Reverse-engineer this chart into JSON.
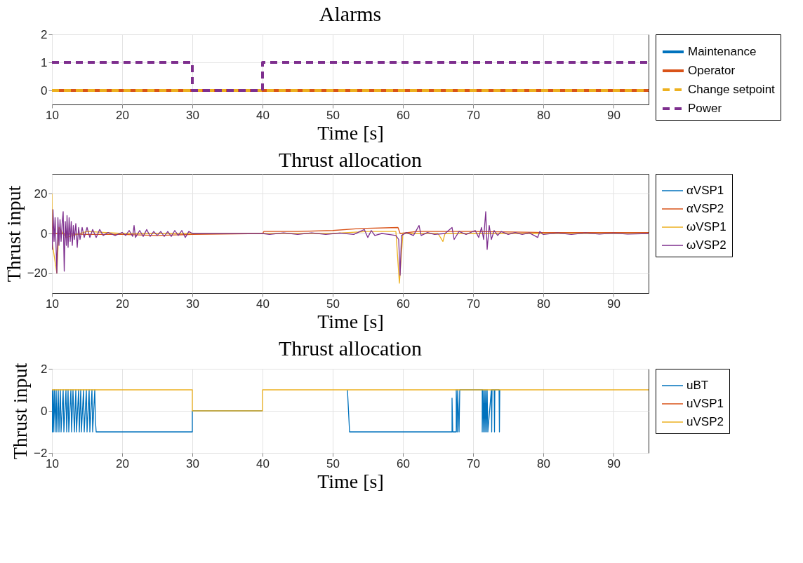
{
  "chart_data": [
    {
      "type": "line",
      "title": "Alarms",
      "xlabel": "Time [s]",
      "xlim": [
        10,
        95
      ],
      "xticks": [
        10,
        20,
        30,
        40,
        50,
        60,
        70,
        80,
        90
      ],
      "ylim": [
        -0.5,
        2
      ],
      "yticks": [
        0,
        1,
        2
      ],
      "grid": true,
      "legend": "right",
      "series": [
        {
          "name": "Maintenance",
          "color": "#0072bd",
          "line_style": "solid"
        },
        {
          "name": "Operator",
          "color": "#d95319",
          "line_style": "solid",
          "x": [
            10,
            30,
            40,
            95
          ],
          "values": [
            0,
            0,
            0,
            0
          ]
        },
        {
          "name": "Change setpoint",
          "color": "#edb120",
          "line_style": "dashed",
          "x": [
            10,
            30,
            40,
            95
          ],
          "values": [
            0,
            0,
            0,
            0
          ]
        },
        {
          "name": "Power",
          "color": "#7e2f8e",
          "line_style": "dashed",
          "x": [
            10,
            30,
            30,
            40,
            40,
            95
          ],
          "values": [
            1,
            1,
            0,
            0,
            1,
            1
          ]
        }
      ]
    },
    {
      "type": "line",
      "title": "Thrust allocation",
      "xlabel": "Time [s]",
      "ylabel": "Thrust input",
      "xlim": [
        10,
        95
      ],
      "xticks": [
        10,
        20,
        30,
        40,
        50,
        60,
        70,
        80,
        90
      ],
      "ylim": [
        -30,
        30
      ],
      "yticks": [
        -20,
        0,
        20
      ],
      "grid": true,
      "legend": "right",
      "series": [
        {
          "name": "αVSP1",
          "color": "#0072bd",
          "line_style": "solid"
        },
        {
          "name": "αVSP2",
          "color": "#d95319",
          "line_style": "solid",
          "x": [
            10,
            15,
            20,
            25,
            30,
            40,
            40.2,
            45,
            50,
            54,
            59.3,
            59.6,
            62,
            70,
            80,
            95
          ],
          "values": [
            0,
            -0.5,
            -0.5,
            -1,
            -0.5,
            0,
            1,
            1,
            1.5,
            2.5,
            3,
            0,
            1,
            1,
            0.5,
            0.5
          ]
        },
        {
          "name": "ωVSP1",
          "color": "#edb120",
          "line_style": "solid",
          "x": [
            10,
            10.05,
            10.7,
            11,
            12,
            15,
            20,
            30,
            40,
            50,
            55,
            59,
            59.5,
            60,
            65,
            65.7,
            66,
            80,
            95
          ],
          "values": [
            20,
            -5,
            -20,
            3,
            -2,
            1,
            0,
            0,
            0,
            0,
            1,
            1,
            -25,
            0,
            0,
            -4,
            0,
            0,
            0
          ]
        },
        {
          "name": "ωVSP2",
          "color": "#7e2f8e",
          "line_style": "solid",
          "x": [
            10,
            10.05,
            10.15,
            10.3,
            10.45,
            10.6,
            10.7,
            10.85,
            11,
            11.15,
            11.3,
            11.45,
            11.6,
            11.75,
            11.9,
            12.05,
            12.15,
            12.3,
            12.45,
            12.6,
            12.75,
            12.9,
            13.05,
            13.2,
            13.4,
            13.6,
            13.8,
            14,
            14.3,
            14.6,
            15,
            15.4,
            15.8,
            16.3,
            16.8,
            17.3,
            18,
            19,
            20,
            20.5,
            21,
            21.5,
            21.7,
            21.9,
            22.5,
            23,
            23.5,
            24,
            24.5,
            25,
            25.5,
            26,
            26.5,
            27,
            27.5,
            28,
            28.5,
            29,
            29.5,
            30,
            40,
            41,
            43,
            45,
            47,
            49,
            51,
            53,
            54.5,
            55,
            55.5,
            56,
            57,
            58,
            59,
            59.4,
            59.6,
            59.8,
            60.5,
            61.5,
            62.3,
            62.6,
            63.5,
            64.5,
            66,
            67,
            67.3,
            68,
            69,
            70.3,
            70.8,
            71.2,
            71.5,
            71.8,
            72,
            72.3,
            72.6,
            73,
            73.5,
            74,
            75,
            76,
            77,
            78,
            79.2,
            79.5,
            80,
            82,
            84,
            86,
            88,
            90,
            92,
            95
          ],
          "values": [
            0,
            -8,
            12,
            -4,
            8,
            -8,
            -20,
            8,
            -6,
            7,
            -4,
            5,
            11,
            -19,
            6,
            -6,
            9,
            -7,
            8,
            -4,
            6,
            -6,
            4,
            -3,
            5,
            -7,
            3,
            -3,
            3,
            -2,
            3,
            -2,
            2,
            -2,
            2,
            -1,
            0.5,
            -1,
            0.5,
            -1,
            1.5,
            -1.5,
            4,
            -2,
            1.5,
            -1.5,
            2,
            -1.5,
            1,
            -1,
            1,
            -1.5,
            1,
            -1.5,
            1.5,
            -1,
            1.5,
            -2,
            1,
            0,
            0,
            -0.5,
            0.3,
            -0.5,
            0.3,
            -0.5,
            0.2,
            -0.5,
            2,
            -2,
            1.5,
            -1,
            0,
            -0.5,
            -1,
            -3,
            -21,
            -1,
            0.5,
            -1,
            4,
            -1,
            0.5,
            -0.5,
            0,
            3,
            -3,
            1,
            -0.5,
            1.5,
            -2,
            3,
            -3,
            11,
            -8,
            4,
            -3,
            1.5,
            -1,
            1,
            -0.5,
            0.5,
            -0.5,
            0.3,
            -2,
            1,
            -0.5,
            0.3,
            -0.5,
            0.3,
            -0.3,
            0.2,
            -0.3,
            0
          ]
        }
      ]
    },
    {
      "type": "line",
      "title": "Thrust allocation",
      "xlabel": "Time [s]",
      "ylabel": "Thrust input",
      "xlim": [
        10,
        95
      ],
      "xticks": [
        10,
        20,
        30,
        40,
        50,
        60,
        70,
        80,
        90
      ],
      "ylim": [
        -2,
        2
      ],
      "yticks": [
        -2,
        0,
        2
      ],
      "grid": true,
      "legend": "right",
      "series": [
        {
          "name": "uBT",
          "color": "#0072bd",
          "line_style": "solid",
          "x": [
            10,
            10.05,
            10.15,
            10.2,
            10.35,
            10.45,
            10.6,
            10.7,
            10.9,
            11,
            11.2,
            11.3,
            11.6,
            11.7,
            12,
            12.1,
            12.3,
            12.4,
            12.7,
            12.8,
            13,
            13.2,
            13.4,
            13.5,
            13.8,
            13.9,
            14.1,
            14.2,
            14.5,
            14.6,
            14.9,
            15,
            15.3,
            15.4,
            15.7,
            15.8,
            16.1,
            16.2,
            16.3,
            30,
            30,
            40,
            46,
            52.1,
            52.4,
            67,
            67,
            67.1,
            67.6,
            67.6,
            67.75,
            67.8,
            68,
            68.05,
            68.1,
            71.3,
            71.3,
            71.4,
            71.5,
            71.6,
            71.7,
            71.8,
            71.9,
            72,
            72.1,
            72.6,
            72.65,
            72.7,
            73,
            73.05,
            73.1,
            73.7,
            73.75,
            73.8
          ],
          "values": [
            1,
            -1,
            1,
            -1,
            1,
            -1,
            1,
            -1,
            1,
            -1,
            1,
            -1,
            1,
            -1,
            1,
            -1,
            1,
            -1,
            1,
            -1,
            1,
            -1,
            1,
            -1,
            1,
            -1,
            1,
            -1,
            1,
            -1,
            1,
            -1,
            1,
            -1,
            1,
            -1,
            1,
            -0.5,
            -1,
            -1,
            0,
            0,
            null,
            1,
            -1,
            -1,
            0.6,
            -1,
            -1,
            1,
            -1,
            1,
            -1,
            0,
            1,
            1,
            -1,
            1,
            -1,
            1,
            -1,
            1,
            -1,
            1,
            -1,
            1,
            -1,
            1,
            1,
            -1,
            1,
            1,
            -1,
            1
          ]
        },
        {
          "name": "uVSP1",
          "color": "#d95319",
          "line_style": "solid"
        },
        {
          "name": "uVSP2",
          "color": "#edb120",
          "line_style": "solid",
          "x": [
            10,
            30,
            30,
            40,
            40,
            95
          ],
          "values": [
            1,
            1,
            0,
            0,
            1,
            1
          ]
        }
      ]
    }
  ]
}
